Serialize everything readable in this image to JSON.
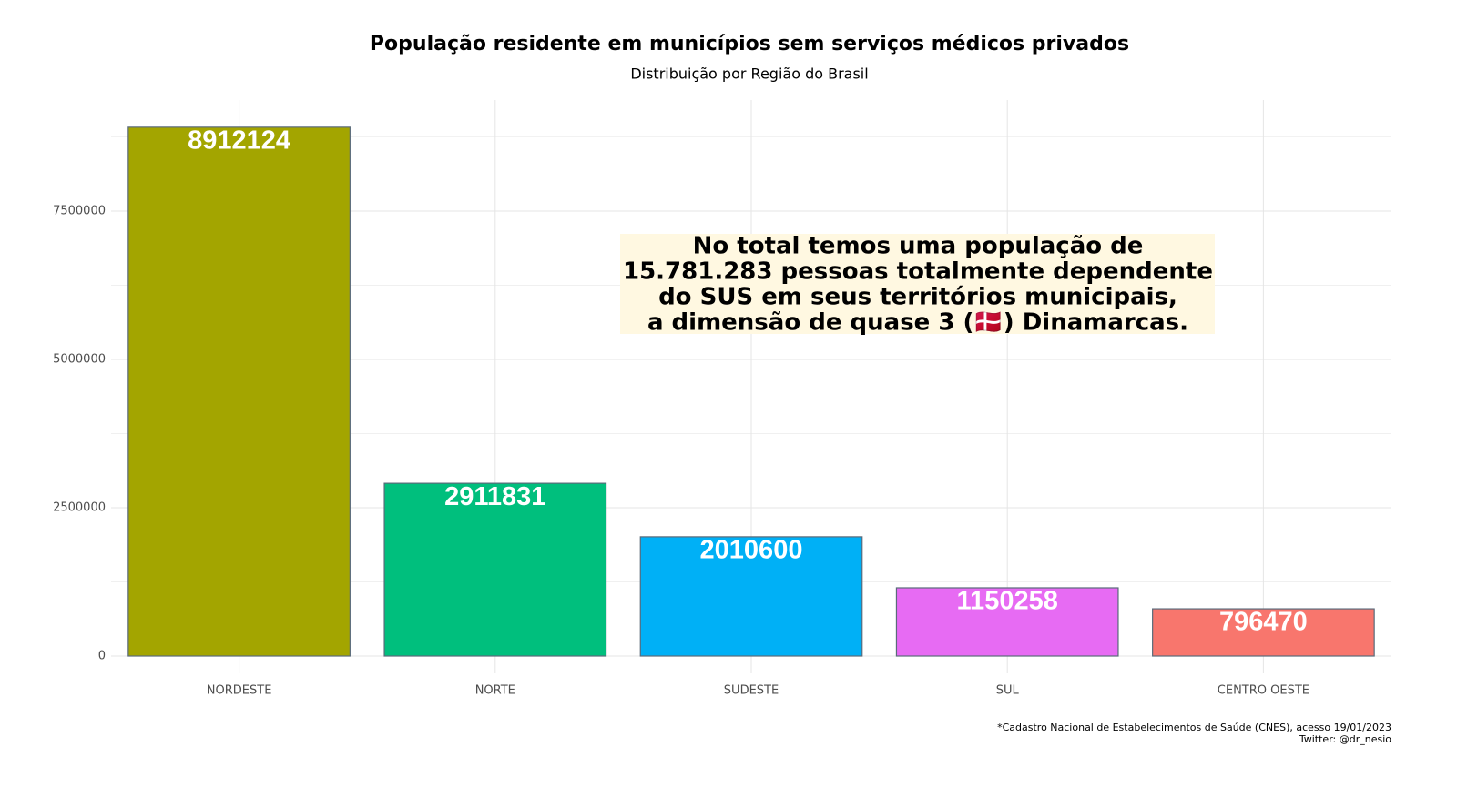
{
  "chart_data": {
    "type": "bar",
    "title": "População residente em municípios sem serviços médicos privados",
    "subtitle": "Distribuição por Região do Brasil",
    "categories": [
      "NORDESTE",
      "NORTE",
      "SUDESTE",
      "SUL",
      "CENTRO OESTE"
    ],
    "values": [
      8912124,
      2911831,
      2010600,
      1150258,
      796470
    ],
    "colors": [
      "#a3a500",
      "#00bf7d",
      "#00b0f6",
      "#e76bf3",
      "#f8766d"
    ],
    "ylim": [
      0,
      9370000
    ],
    "yticks": [
      0,
      2500000,
      5000000,
      7500000
    ],
    "grid": true,
    "annotation": [
      "No total temos uma população de",
      "15.781.283 pessoas totalmente dependente",
      "do SUS em seus territórios municipais,",
      "a dimensão de quase 3 (🇩🇰) Dinamarcas."
    ],
    "caption": [
      "*Cadastro Nacional de Estabelecimentos de Saúde (CNES), acesso 19/01/2023",
      "Twitter: @dr_nesio"
    ]
  }
}
